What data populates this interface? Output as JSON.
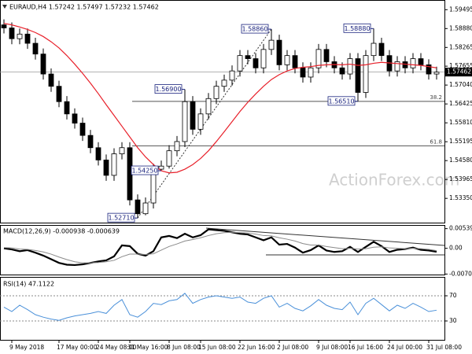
{
  "chart_data": [
    {
      "type": "candlestick",
      "title": "EURAUD,H4  1.57242 1.57497 1.57232 1.57462",
      "watermark": "ActionForex.com",
      "categories": [
        null,
        "9 May 2018",
        null,
        null,
        null,
        null,
        null,
        "17 May 00:00",
        null,
        null,
        null,
        null,
        "24 May 08:00",
        null,
        null,
        null,
        "31 May 16:00",
        null,
        null,
        null,
        null,
        "8 Jun 08:00",
        null,
        null,
        null,
        "15 Jun 08:00",
        null,
        null,
        null,
        null,
        "22 Jun 16:00",
        null,
        null,
        null,
        null,
        "2 Jul 08:00",
        null,
        null,
        null,
        null,
        "9 Jul 08:00",
        null,
        null,
        null,
        "16 Jul 16:00",
        null,
        null,
        null,
        null,
        "24 Jul 00:00",
        null,
        null,
        null,
        null,
        "31 Jul 08:00",
        null
      ],
      "open": [
        1.59,
        1.589,
        1.5855,
        1.587,
        1.584,
        1.5805,
        1.574,
        1.57,
        1.565,
        1.561,
        1.558,
        1.554,
        1.55,
        1.546,
        1.541,
        1.548,
        1.55,
        1.533,
        1.5285,
        1.532,
        1.543,
        1.544,
        1.549,
        1.552,
        1.565,
        1.556,
        1.561,
        1.566,
        1.57,
        1.572,
        1.575,
        1.58,
        1.579,
        1.576,
        1.582,
        1.585,
        1.577,
        1.58,
        1.576,
        1.573,
        1.576,
        1.582,
        1.578,
        1.576,
        1.574,
        1.579,
        1.568,
        1.58,
        1.584,
        1.58,
        1.575,
        1.578,
        1.576,
        1.579,
        1.577,
        1.574
      ],
      "high": [
        1.5918,
        1.5908,
        1.5888,
        1.5888,
        1.5858,
        1.5823,
        1.5758,
        1.5718,
        1.5668,
        1.5628,
        1.5598,
        1.5558,
        1.5518,
        1.5478,
        1.5498,
        1.5518,
        1.5518,
        1.5348,
        1.5338,
        1.5448,
        1.5458,
        1.5508,
        1.5538,
        1.569,
        1.5668,
        1.5628,
        1.5678,
        1.5718,
        1.5738,
        1.5768,
        1.5818,
        1.5818,
        1.5808,
        1.5838,
        1.5886,
        1.5868,
        1.5818,
        1.5818,
        1.5778,
        1.5778,
        1.5838,
        1.5838,
        1.5798,
        1.5778,
        1.5808,
        1.5808,
        1.5818,
        1.5888,
        1.5858,
        1.5818,
        1.5798,
        1.5798,
        1.5808,
        1.5808,
        1.5788,
        1.5764
      ],
      "low": [
        1.5872,
        1.5837,
        1.5837,
        1.5822,
        1.5787,
        1.5722,
        1.5682,
        1.5632,
        1.5592,
        1.5562,
        1.5522,
        1.5482,
        1.5442,
        1.5392,
        1.5392,
        1.5462,
        1.5312,
        1.5271,
        1.528,
        1.5302,
        1.5425,
        1.5432,
        1.5472,
        1.5502,
        1.5542,
        1.5542,
        1.5592,
        1.5642,
        1.5682,
        1.5702,
        1.5732,
        1.5772,
        1.5742,
        1.5742,
        1.5802,
        1.5752,
        1.5752,
        1.5742,
        1.5712,
        1.5712,
        1.5742,
        1.5762,
        1.5742,
        1.5722,
        1.5722,
        1.5651,
        1.5662,
        1.5782,
        1.5782,
        1.5732,
        1.5732,
        1.5742,
        1.5742,
        1.5752,
        1.5722,
        1.5722
      ],
      "close": [
        1.589,
        1.5855,
        1.587,
        1.584,
        1.5805,
        1.574,
        1.57,
        1.565,
        1.561,
        1.558,
        1.554,
        1.55,
        1.546,
        1.541,
        1.548,
        1.55,
        1.533,
        1.5285,
        1.532,
        1.543,
        1.544,
        1.549,
        1.552,
        1.565,
        1.556,
        1.561,
        1.566,
        1.57,
        1.572,
        1.575,
        1.58,
        1.579,
        1.576,
        1.582,
        1.585,
        1.577,
        1.58,
        1.576,
        1.573,
        1.576,
        1.582,
        1.578,
        1.576,
        1.574,
        1.579,
        1.568,
        1.58,
        1.584,
        1.58,
        1.575,
        1.578,
        1.576,
        1.579,
        1.577,
        1.574,
        1.5746
      ],
      "color": "#000000",
      "overlay": {
        "color": "#e8202a",
        "values": [
          1.5905,
          1.59,
          1.5893,
          1.5885,
          1.5875,
          1.5862,
          1.5845,
          1.5825,
          1.58,
          1.5772,
          1.5742,
          1.571,
          1.5676,
          1.564,
          1.5605,
          1.557,
          1.5535,
          1.55,
          1.547,
          1.5445,
          1.5425,
          1.5418,
          1.542,
          1.543,
          1.5445,
          1.5465,
          1.549,
          1.552,
          1.5552,
          1.5585,
          1.5618,
          1.5648,
          1.5675,
          1.57,
          1.5722,
          1.5738,
          1.575,
          1.5758,
          1.5762,
          1.5764,
          1.5768,
          1.577,
          1.5771,
          1.577,
          1.5772,
          1.5768,
          1.577,
          1.5775,
          1.5778,
          1.5776,
          1.5774,
          1.5772,
          1.577,
          1.5768,
          1.5764,
          1.576
        ]
      },
      "annotations": [
        {
          "value": 1.5271,
          "label": "1.52710"
        },
        {
          "value": 1.5425,
          "label": "1.54250"
        },
        {
          "value": 1.569,
          "label": "1.56900"
        },
        {
          "value": 1.5886,
          "label": "1.58860"
        },
        {
          "value": 1.5888,
          "label": "1.58880"
        },
        {
          "value": 1.5651,
          "label": "1.56510"
        }
      ],
      "levels": [
        {
          "value": 1.5651,
          "label": "38.2"
        },
        {
          "value": 1.5506,
          "label": "61.8"
        }
      ],
      "last": 1.57462,
      "ylim": [
        1.5256,
        1.5981
      ],
      "yticks": [
        1.59495,
        {
          "value": 1.5888,
          "label": "1.58880"
        },
        1.58265,
        1.57655,
        {
          "value": 1.5704,
          "label": "1.57040"
        },
        1.56425,
        {
          "value": 1.5581,
          "label": "1.55810"
        },
        1.55195,
        {
          "value": 1.5458,
          "label": "1.54580"
        },
        1.53965,
        {
          "value": 1.5335,
          "label": "1.53350"
        }
      ]
    },
    {
      "type": "line",
      "title": "MACD(12,26,9) -0.000938 -0.000639",
      "series": [
        {
          "color": "#000000",
          "values": [
            0.0,
            -0.0003,
            -0.0008,
            -0.0005,
            -0.0012,
            -0.002,
            -0.003,
            -0.004,
            -0.0045,
            -0.0046,
            -0.0044,
            -0.004,
            -0.0036,
            -0.0033,
            -0.0022,
            0.0008,
            0.0006,
            -0.0015,
            -0.002,
            -0.0008,
            0.003,
            0.0034,
            0.0028,
            0.004,
            0.003,
            0.0036,
            0.0052,
            0.005,
            0.0048,
            0.0044,
            0.004,
            0.0038,
            0.003,
            0.0022,
            0.003,
            0.001,
            0.0012,
            0.0002,
            -0.0012,
            -0.0005,
            0.0008,
            -0.0006,
            -0.001,
            -0.0008,
            0.0004,
            -0.001,
            0.0004,
            0.0018,
            0.0006,
            -0.001,
            -0.0004,
            -0.0002,
            0.0002,
            -0.0004,
            -0.0006,
            -0.000938
          ]
        },
        {
          "color": "#8a8a8a",
          "values": [
            0.0002,
            0.0001,
            -0.0002,
            -0.0003,
            -0.0006,
            -0.001,
            -0.0016,
            -0.0024,
            -0.0031,
            -0.0037,
            -0.004,
            -0.004,
            -0.0039,
            -0.0037,
            -0.0033,
            -0.0023,
            -0.0016,
            -0.0016,
            -0.0017,
            -0.0015,
            -0.0005,
            0.0005,
            0.0012,
            0.002,
            0.0024,
            0.0029,
            0.0035,
            0.004,
            0.0043,
            0.0044,
            0.0043,
            0.0042,
            0.0039,
            0.0035,
            0.0034,
            0.0029,
            0.0025,
            0.002,
            0.0013,
            0.0009,
            0.0009,
            0.0005,
            0.0002,
            -0.0001,
            0.0,
            -0.0002,
            -0.0001,
            0.0003,
            0.0004,
            0.0001,
            0.0,
            -0.0001,
            0.0,
            -0.0001,
            -0.0003,
            -0.000639
          ]
        }
      ],
      "ylim": [
        -0.0072,
        0.0064
      ],
      "yticks": [
        0.005398,
        {
          "value": 0,
          "label": "0.00"
        },
        -0.007064
      ]
    },
    {
      "type": "line",
      "title": "RSI(14) 47.1122",
      "series": [
        {
          "color": "#4a90d9",
          "values": [
            52,
            45,
            55,
            48,
            40,
            36,
            33,
            31,
            35,
            38,
            40,
            42,
            45,
            42,
            55,
            64,
            40,
            36,
            45,
            58,
            56,
            62,
            64,
            74,
            58,
            64,
            68,
            70,
            68,
            66,
            68,
            60,
            58,
            66,
            70,
            52,
            58,
            50,
            46,
            54,
            64,
            55,
            50,
            48,
            60,
            40,
            58,
            66,
            56,
            46,
            55,
            50,
            58,
            52,
            45,
            47.1122
          ]
        }
      ],
      "ylim": [
        0,
        100
      ],
      "yticks": [
        70,
        30
      ],
      "grid": true
    }
  ]
}
